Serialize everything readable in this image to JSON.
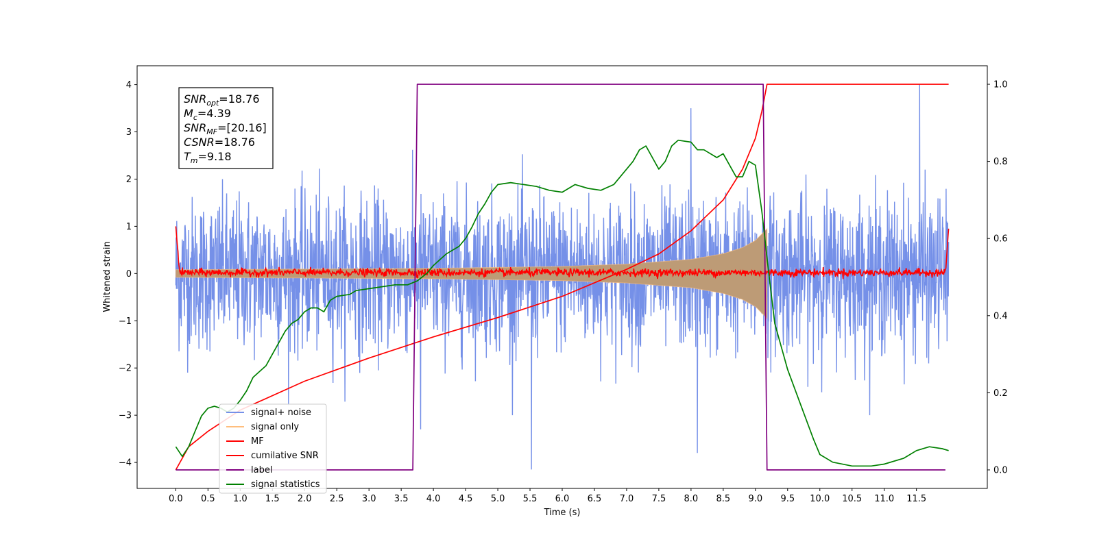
{
  "chart_data": {
    "type": "line",
    "xlabel": "Time (s)",
    "ylabel_left": "Whitened strain",
    "ylabel_right": "",
    "xlim": [
      -0.6,
      12.6
    ],
    "ylim_left": [
      -4.55,
      4.4
    ],
    "ylim_right": [
      -0.048,
      1.048
    ],
    "xticks": [
      "0.0",
      "0.5",
      "1.0",
      "1.5",
      "2.0",
      "2.5",
      "3.0",
      "3.5",
      "4.0",
      "4.5",
      "5.0",
      "5.5",
      "6.0",
      "6.5",
      "7.0",
      "7.5",
      "8.0",
      "8.5",
      "9.0",
      "9.5",
      "10.0",
      "10.5",
      "11.0",
      "11.5"
    ],
    "yticks_left": [
      "4",
      "3",
      "2",
      "1",
      "0",
      "−1",
      "−2",
      "−3",
      "−4"
    ],
    "yticks_right": [
      "1.0",
      "0.8",
      "0.6",
      "0.4",
      "0.2",
      "0.0"
    ],
    "annotation": [
      {
        "base": "SNR",
        "sub": "opt",
        "rest": "=18.76"
      },
      {
        "base": "M",
        "sub": "c",
        "rest": "=4.39"
      },
      {
        "base": "SNR",
        "sub": "MF",
        "rest": "=[20.16]"
      },
      {
        "base": "CSNR",
        "sub": "",
        "rest": "=18.76"
      },
      {
        "base": "T",
        "sub": "m",
        "rest": "=9.18"
      }
    ],
    "legend_position": "lower-left",
    "series": [
      {
        "name": "signal+ noise",
        "color": "#7590e8",
        "axis": "left",
        "kind": "noise",
        "x_range": [
          0.0,
          12.0
        ],
        "std": 0.8,
        "extremes": [
          [
            5.52,
            -4.15
          ],
          [
            11.55,
            4.0
          ],
          [
            8.0,
            3.5
          ],
          [
            8.1,
            -3.8
          ],
          [
            3.8,
            -3.3
          ]
        ]
      },
      {
        "name": "signal only",
        "color": "#ffbe7d",
        "axis": "left",
        "kind": "chirp",
        "x_range": [
          0.0,
          9.18
        ],
        "envelope": [
          [
            0.0,
            0.08
          ],
          [
            4.0,
            0.11
          ],
          [
            6.0,
            0.15
          ],
          [
            7.0,
            0.2
          ],
          [
            8.0,
            0.3
          ],
          [
            8.5,
            0.42
          ],
          [
            8.8,
            0.55
          ],
          [
            9.0,
            0.7
          ],
          [
            9.18,
            0.95
          ]
        ]
      },
      {
        "name": "MF",
        "color": "#ff0000",
        "axis": "left",
        "kind": "mf",
        "x_range": [
          0.0,
          12.0
        ],
        "start": 1.0,
        "end": 0.95,
        "noise_std": 0.04
      },
      {
        "name": "cumilative SNR",
        "color": "#ff0000",
        "axis": "right",
        "kind": "line",
        "points": [
          [
            0.0,
            0.0
          ],
          [
            0.2,
            0.06
          ],
          [
            0.5,
            0.1
          ],
          [
            1.0,
            0.155
          ],
          [
            2.0,
            0.23
          ],
          [
            3.0,
            0.29
          ],
          [
            4.0,
            0.345
          ],
          [
            5.0,
            0.395
          ],
          [
            6.0,
            0.45
          ],
          [
            7.0,
            0.52
          ],
          [
            7.5,
            0.56
          ],
          [
            8.0,
            0.62
          ],
          [
            8.5,
            0.7
          ],
          [
            8.8,
            0.78
          ],
          [
            9.0,
            0.86
          ],
          [
            9.1,
            0.93
          ],
          [
            9.18,
            1.0
          ],
          [
            12.0,
            1.0
          ]
        ]
      },
      {
        "name": "label",
        "color": "#800080",
        "axis": "right",
        "kind": "line",
        "points": [
          [
            0.0,
            0.0
          ],
          [
            3.68,
            0.0
          ],
          [
            3.75,
            1.0
          ],
          [
            9.12,
            1.0
          ],
          [
            9.18,
            0.0
          ],
          [
            11.95,
            0.0
          ]
        ]
      },
      {
        "name": "signal statistics",
        "color": "#008000",
        "axis": "right",
        "kind": "line",
        "points": [
          [
            0.0,
            0.06
          ],
          [
            0.1,
            0.035
          ],
          [
            0.2,
            0.06
          ],
          [
            0.3,
            0.1
          ],
          [
            0.4,
            0.14
          ],
          [
            0.5,
            0.16
          ],
          [
            0.6,
            0.165
          ],
          [
            0.7,
            0.16
          ],
          [
            0.8,
            0.15
          ],
          [
            0.9,
            0.16
          ],
          [
            1.0,
            0.18
          ],
          [
            1.1,
            0.205
          ],
          [
            1.2,
            0.24
          ],
          [
            1.3,
            0.255
          ],
          [
            1.4,
            0.27
          ],
          [
            1.5,
            0.3
          ],
          [
            1.6,
            0.33
          ],
          [
            1.7,
            0.36
          ],
          [
            1.8,
            0.38
          ],
          [
            1.9,
            0.39
          ],
          [
            2.0,
            0.41
          ],
          [
            2.1,
            0.42
          ],
          [
            2.2,
            0.42
          ],
          [
            2.3,
            0.41
          ],
          [
            2.4,
            0.44
          ],
          [
            2.5,
            0.45
          ],
          [
            2.7,
            0.455
          ],
          [
            2.8,
            0.465
          ],
          [
            3.0,
            0.47
          ],
          [
            3.2,
            0.475
          ],
          [
            3.4,
            0.48
          ],
          [
            3.6,
            0.48
          ],
          [
            3.75,
            0.49
          ],
          [
            3.9,
            0.51
          ],
          [
            4.0,
            0.53
          ],
          [
            4.2,
            0.56
          ],
          [
            4.4,
            0.58
          ],
          [
            4.5,
            0.6
          ],
          [
            4.6,
            0.63
          ],
          [
            4.7,
            0.665
          ],
          [
            4.8,
            0.69
          ],
          [
            4.9,
            0.72
          ],
          [
            5.0,
            0.74
          ],
          [
            5.2,
            0.745
          ],
          [
            5.4,
            0.74
          ],
          [
            5.6,
            0.735
          ],
          [
            5.8,
            0.725
          ],
          [
            6.0,
            0.72
          ],
          [
            6.2,
            0.74
          ],
          [
            6.4,
            0.73
          ],
          [
            6.6,
            0.725
          ],
          [
            6.8,
            0.74
          ],
          [
            7.0,
            0.78
          ],
          [
            7.1,
            0.8
          ],
          [
            7.2,
            0.83
          ],
          [
            7.3,
            0.84
          ],
          [
            7.4,
            0.81
          ],
          [
            7.5,
            0.78
          ],
          [
            7.6,
            0.8
          ],
          [
            7.7,
            0.84
          ],
          [
            7.8,
            0.855
          ],
          [
            8.0,
            0.85
          ],
          [
            8.1,
            0.83
          ],
          [
            8.2,
            0.83
          ],
          [
            8.4,
            0.81
          ],
          [
            8.5,
            0.82
          ],
          [
            8.7,
            0.76
          ],
          [
            8.8,
            0.76
          ],
          [
            8.9,
            0.8
          ],
          [
            9.0,
            0.79
          ],
          [
            9.1,
            0.67
          ],
          [
            9.2,
            0.52
          ],
          [
            9.3,
            0.38
          ],
          [
            9.5,
            0.26
          ],
          [
            9.7,
            0.17
          ],
          [
            9.9,
            0.08
          ],
          [
            10.0,
            0.04
          ],
          [
            10.2,
            0.02
          ],
          [
            10.5,
            0.01
          ],
          [
            10.8,
            0.01
          ],
          [
            11.0,
            0.015
          ],
          [
            11.3,
            0.03
          ],
          [
            11.5,
            0.05
          ],
          [
            11.7,
            0.06
          ],
          [
            11.9,
            0.055
          ],
          [
            12.0,
            0.05
          ]
        ]
      }
    ]
  }
}
